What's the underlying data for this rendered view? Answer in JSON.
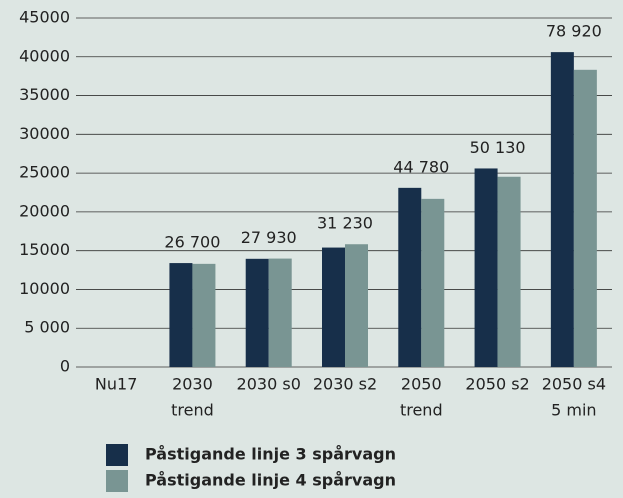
{
  "chart_data": {
    "type": "bar",
    "categories": [
      [
        "Nu17"
      ],
      [
        "2030",
        "trend"
      ],
      [
        "2030 s0"
      ],
      [
        "2030 s2"
      ],
      [
        "2050",
        "trend"
      ],
      [
        "2050 s2"
      ],
      [
        "2050 s4",
        "5 min"
      ]
    ],
    "series": [
      {
        "name": "Påstigande linje 3 spårvagn",
        "color": "#172f4a",
        "values": [
          null,
          13400,
          13950,
          15400,
          23100,
          25600,
          40600
        ]
      },
      {
        "name": "Påstigande linje 4 spårvagn",
        "color": "#799593",
        "values": [
          null,
          13300,
          13980,
          15830,
          21680,
          24530,
          38320
        ]
      }
    ],
    "totals": [
      null,
      26700,
      27930,
      31230,
      44780,
      50130,
      78920
    ],
    "total_labels": [
      null,
      "26 700",
      "27 930",
      "31 230",
      "44 780",
      "50 130",
      "78 920"
    ],
    "ylim": [
      0,
      45000
    ],
    "yticks": [
      0,
      {
        "value": 5000,
        "label": "5 000"
      },
      10000,
      15000,
      20000,
      25000,
      30000,
      35000,
      40000,
      45000
    ],
    "grid": true
  }
}
